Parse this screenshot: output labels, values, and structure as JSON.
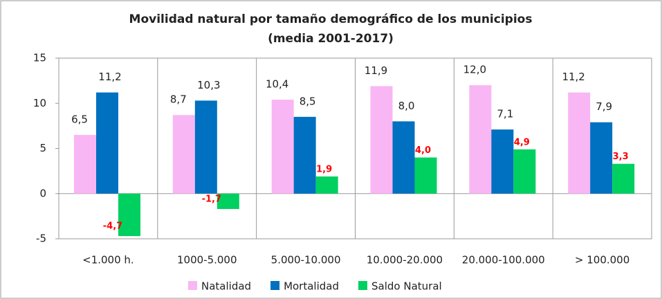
{
  "chart_data": {
    "type": "bar",
    "title": "Movilidad natural por tamaño demográfico de los municipios",
    "subtitle": "(media 2001-2017)",
    "categories": [
      "<1.000 h.",
      "1000-5.000",
      "5.000-10.000",
      "10.000-20.000",
      "20.000-100.000",
      "> 100.000"
    ],
    "series": [
      {
        "name": "Natalidad",
        "color": "#f9b6f4",
        "values": [
          6.5,
          8.7,
          10.4,
          11.9,
          12.0,
          11.2
        ],
        "value_labels": [
          "6,5",
          "8,7",
          "10,4",
          "11,9",
          "12,0",
          "11,2"
        ]
      },
      {
        "name": "Mortalidad",
        "color": "#0070c0",
        "values": [
          11.2,
          10.3,
          8.5,
          8.0,
          7.1,
          7.9
        ],
        "value_labels": [
          "11,2",
          "10,3",
          "8,5",
          "8,0",
          "7,1",
          "7,9"
        ]
      },
      {
        "name": "Saldo Natural",
        "color": "#00d060",
        "values": [
          -4.7,
          -1.7,
          1.9,
          4.0,
          4.9,
          3.3
        ],
        "value_labels": [
          "-4,7",
          "-1,7",
          "1,9",
          "4,0",
          "4,9",
          "3,3"
        ]
      }
    ],
    "ylim": [
      -5,
      15
    ],
    "yticks": [
      -5,
      0,
      5,
      10,
      15
    ],
    "grid": false,
    "legend": "bottom"
  }
}
